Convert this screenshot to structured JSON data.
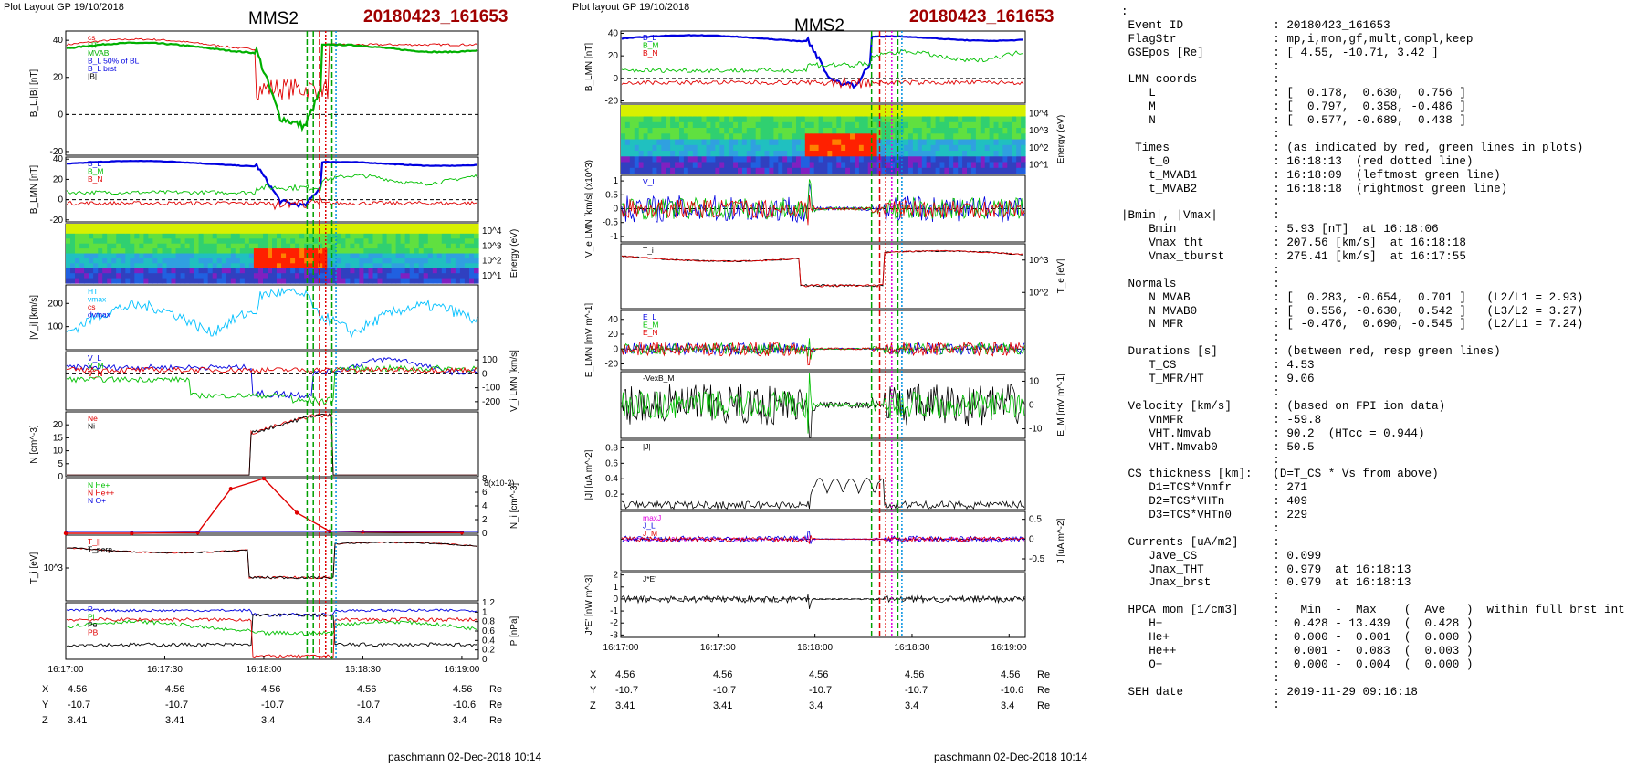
{
  "left_figure": {
    "header": "Plot Layout GP 19/10/2018",
    "spacecraft": "MMS2",
    "event": "20180423_161653",
    "footer": "paschmann 02-Dec-2018 10:14",
    "time_ticks": [
      "16:17:00",
      "16:17:30",
      "16:18:00",
      "16:18:30",
      "16:19:00"
    ],
    "orbit": {
      "rows": [
        {
          "label": "X",
          "values": [
            "4.56",
            "4.56",
            "4.56",
            "4.56",
            "4.56"
          ],
          "unit": "Re"
        },
        {
          "label": "Y",
          "values": [
            "-10.7",
            "-10.7",
            "-10.7",
            "-10.7",
            "-10.6"
          ],
          "unit": "Re"
        },
        {
          "label": "Z",
          "values": [
            "3.41",
            "3.41",
            "3.4",
            "3.4",
            "3.4"
          ],
          "unit": "Re"
        }
      ]
    }
  },
  "right_figure": {
    "header": "Plot layout GP 19/10/2018",
    "spacecraft": "MMS2",
    "event": "20180423_161653",
    "footer": "paschmann 02-Dec-2018 10:14",
    "time_ticks": [
      "16:17:00",
      "16:17:30",
      "16:18:00",
      "16:18:30",
      "16:19:00"
    ],
    "orbit": {
      "rows": [
        {
          "label": "X",
          "values": [
            "4.56",
            "4.56",
            "4.56",
            "4.56",
            "4.56"
          ],
          "unit": "Re"
        },
        {
          "label": "Y",
          "values": [
            "-10.7",
            "-10.7",
            "-10.7",
            "-10.7",
            "-10.6"
          ],
          "unit": "Re"
        },
        {
          "label": "Z",
          "values": [
            "3.41",
            "3.41",
            "3.4",
            "3.4",
            "3.4"
          ],
          "unit": "Re"
        }
      ]
    }
  },
  "chart_data": [
    {
      "type": "line",
      "figure": "left",
      "ylabel": "B_L,|B| [nT]",
      "ylim": [
        -22,
        45
      ],
      "yticks": [
        -20,
        0,
        20,
        40
      ],
      "legend": [
        "cs",
        "HT",
        "MVAB",
        "B_L 50% of BL",
        "B_L brst",
        "|B|"
      ],
      "colors": [
        "#e00000",
        "#00b000",
        "#00b000",
        "#0000e0",
        "#0000e0",
        "#000000"
      ]
    },
    {
      "type": "line",
      "figure": "left",
      "ylabel": "B_LMN [nT]",
      "ylim": [
        -22,
        42
      ],
      "yticks": [
        -20,
        0,
        20,
        40
      ],
      "labels": [
        "B_L",
        "B_M",
        "B_N"
      ],
      "colors": [
        "#0000e0",
        "#00c000",
        "#e00000"
      ]
    },
    {
      "type": "heatmap",
      "figure": "left",
      "ylabel": "Energy (eV)",
      "yticks": [
        "10^4",
        "10^3",
        "10^2",
        "10^1"
      ]
    },
    {
      "type": "line",
      "figure": "left",
      "ylabel": "|V_i| [km/s]",
      "ylim": [
        0,
        280
      ],
      "yticks": [
        100,
        200
      ],
      "legend": [
        "HT",
        "vmax",
        "cs",
        "dvmax"
      ],
      "colors": [
        "#00c0ff",
        "#00c0ff",
        "#e00000",
        "#0000e0"
      ]
    },
    {
      "type": "line",
      "figure": "left",
      "ylabel": "V_i LMN [km/s]",
      "ylim": [
        -260,
        160
      ],
      "yticks": [
        100,
        0,
        -100,
        -200
      ],
      "labels": [
        "V_L",
        "V_M",
        "V_N"
      ],
      "colors": [
        "#0000e0",
        "#00c000",
        "#e00000"
      ]
    },
    {
      "type": "line",
      "figure": "left",
      "ylabel": "N [cm^-3]",
      "ylim": [
        0,
        25
      ],
      "yticks": [
        0,
        5,
        10,
        15,
        20
      ],
      "legend": [
        "Ne",
        "Ni"
      ],
      "colors": [
        "#e00000",
        "#000000"
      ]
    },
    {
      "type": "line",
      "figure": "left",
      "ylabel": "N_i [cm^-3]",
      "yscale": "x10^-2",
      "ylim": [
        0,
        8
      ],
      "yticks": [
        0,
        2,
        4,
        6,
        8
      ],
      "legend": [
        "N He+",
        "N He++",
        "N O+"
      ],
      "colors": [
        "#00c000",
        "#e00000",
        "#0000e0"
      ],
      "series": [
        {
          "name": "N He++",
          "x": [
            "16:17:00",
            "16:17:20",
            "16:17:40",
            "16:17:50",
            "16:18:00",
            "16:18:10",
            "16:18:20",
            "16:18:30",
            "16:19:00"
          ],
          "y": [
            0,
            0,
            0.1,
            6.5,
            8,
            3,
            0.3,
            0.2,
            0.1
          ]
        }
      ]
    },
    {
      "type": "line",
      "figure": "left",
      "ylabel": "T_i [eV]",
      "yticks": [
        "10^3"
      ],
      "labels": [
        "T_||",
        "T_perp"
      ],
      "colors": [
        "#e00000",
        "#000000"
      ]
    },
    {
      "type": "line",
      "figure": "left",
      "ylabel": "P [nPa]",
      "ylim": [
        0,
        1.2
      ],
      "yticks": [
        0,
        0.2,
        0.4,
        0.6,
        0.8,
        1.0,
        1.2
      ],
      "labels": [
        "P",
        "Pi",
        "Pe",
        "PB"
      ],
      "colors": [
        "#0000e0",
        "#00c000",
        "#000000",
        "#e00000"
      ]
    },
    {
      "type": "line",
      "figure": "right",
      "ylabel": "B_LMN [nT]",
      "ylim": [
        -22,
        42
      ],
      "yticks": [
        -20,
        0,
        20,
        40
      ],
      "labels": [
        "B_L",
        "B_M",
        "B_N"
      ],
      "colors": [
        "#0000e0",
        "#00c000",
        "#e00000"
      ]
    },
    {
      "type": "heatmap",
      "figure": "right",
      "ylabel": "Energy (eV)",
      "yticks": [
        "10^4",
        "10^3",
        "10^2",
        "10^1"
      ]
    },
    {
      "type": "line",
      "figure": "right",
      "ylabel": "V_e LMN [km/s] (x10^3)",
      "ylim": [
        -1.2,
        1.2
      ],
      "yticks": [
        -1.0,
        -0.5,
        0.0,
        0.5,
        1.0
      ],
      "labels": [
        "V_L"
      ],
      "colors": [
        "#0000e0",
        "#00c000",
        "#e00000"
      ]
    },
    {
      "type": "line",
      "figure": "right",
      "ylabel": "T_e [eV]",
      "yticks": [
        "10^3",
        "10^2"
      ],
      "labels": [
        "T_i"
      ],
      "colors": [
        "#000000",
        "#e00000"
      ]
    },
    {
      "type": "line",
      "figure": "right",
      "ylabel": "E_LMN [mV m^-1]",
      "ylim": [
        -28,
        52
      ],
      "yticks": [
        -20,
        0,
        20,
        40
      ],
      "labels": [
        "E_L",
        "E_M",
        "E_N"
      ],
      "colors": [
        "#0000e0",
        "#00c000",
        "#e00000"
      ]
    },
    {
      "type": "line",
      "figure": "right",
      "ylabel": "E_M [mV m^-1]",
      "ylim": [
        -14,
        14
      ],
      "yticks": [
        -10,
        0,
        10
      ],
      "labels": [
        "-VexB_M"
      ],
      "colors": [
        "#000000",
        "#00c000"
      ]
    },
    {
      "type": "line",
      "figure": "right",
      "ylabel": "|J| [uA m^-2]",
      "ylim": [
        0,
        0.9
      ],
      "yticks": [
        0.2,
        0.4,
        0.6,
        0.8
      ],
      "labels": [
        "|J|"
      ],
      "colors": [
        "#000000"
      ]
    },
    {
      "type": "line",
      "figure": "right",
      "ylabel": "J [uA m^-2]",
      "ylim": [
        -0.8,
        0.7
      ],
      "yticks": [
        -0.5,
        0.0,
        0.5
      ],
      "labels": [
        "maxJ",
        "J_L",
        "J_M"
      ],
      "colors": [
        "#e000e0",
        "#0000e0",
        "#e00000"
      ]
    },
    {
      "type": "line",
      "figure": "right",
      "ylabel": "J*E' [nW m^-3]",
      "ylim": [
        -3.2,
        2.2
      ],
      "yticks": [
        -3,
        -2,
        -1,
        0,
        1,
        2
      ],
      "labels": [
        "J*E'"
      ],
      "colors": [
        "#000000"
      ]
    }
  ],
  "info_lines": [
    ":",
    " Event ID             : 20180423_161653",
    " FlagStr              : mp,i,mon,gf,mult,compl,keep",
    " GSEpos [Re]          : [ 4.55, -10.71, 3.42 ]",
    "                      :",
    " LMN coords           :",
    "    L                 : [  0.178,  0.630,  0.756 ]",
    "    M                 : [  0.797,  0.358, -0.486 ]",
    "    N                 : [  0.577, -0.689,  0.438 ]",
    "                      :",
    "  Times               : (as indicated by red, green lines in plots)",
    "    t_0               : 16:18:13  (red dotted line)",
    "    t_MVAB1           : 16:18:09  (leftmost green line)",
    "    t_MVAB2           : 16:18:18  (rightmost green line)",
    "                      :",
    "|Bmin|, |Vmax|        :",
    "    Bmin              : 5.93 [nT]  at 16:18:06",
    "    Vmax_tht          : 207.56 [km/s]  at 16:18:18",
    "    Vmax_tburst       : 275.41 [km/s]  at 16:17:55",
    "                      :",
    " Normals              :",
    "    N MVAB            : [  0.283, -0.654,  0.701 ]   (L2/L1 = 2.93)",
    "    N MVAB0           : [  0.556, -0.630,  0.542 ]   (L3/L2 = 3.27)",
    "    N MFR             : [ -0.476,  0.690, -0.545 ]   (L2/L1 = 7.24)",
    "                      :",
    " Durations [s]        : (between red, resp green lines)",
    "    T_CS              : 4.53",
    "    T_MFR/HT          : 9.06",
    "                      :",
    " Velocity [km/s]      : (based on FPI ion data)",
    "    VnMFR             : -59.8",
    "    VHT.Nmvab         : 90.2  (HTcc = 0.944)",
    "    VHT.Nmvab0        : 50.5",
    "                      :",
    " CS thickness [km]:   (D=T_CS * Vs from above)",
    "    D1=TCS*Vnmfr      : 271",
    "    D2=TCS*VHTn       : 409",
    "    D3=TCS*VHTn0      : 229",
    "                      :",
    " Currents [uA/m2]     :",
    "    Jave_CS           : 0.099",
    "    Jmax_THT          : 0.979  at 16:18:13",
    "    Jmax_brst         : 0.979  at 16:18:13",
    "                      :",
    " HPCA mom [1/cm3]     :   Min  -  Max    (  Ave   )  within full brst int",
    "    H+                :  0.428 - 13.439  (  0.428 )",
    "    He+               :  0.000 -  0.001  (  0.000 )",
    "    He++              :  0.001 -  0.083  (  0.003 )",
    "    O+                :  0.000 -  0.004  (  0.000 )",
    "                      :",
    " SEH date             : 2019-11-29 09:16:18",
    "                      :"
  ]
}
